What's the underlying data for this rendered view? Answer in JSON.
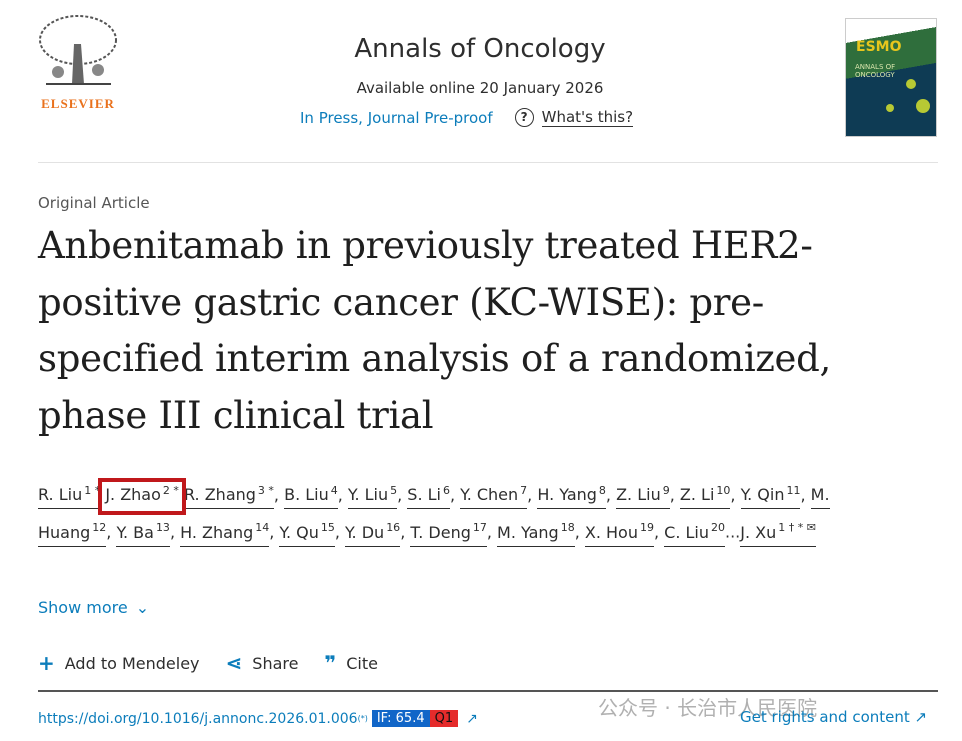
{
  "header": {
    "publisher": "ELSEVIER",
    "journal": "Annals of Oncology",
    "available": "Available online 20 January 2026",
    "status_link": "In Press, Journal Pre-proof",
    "help_link": "What's this?",
    "cover_brand": "ESMO",
    "cover_title": "ANNALS OF ONCOLOGY"
  },
  "article": {
    "type": "Original Article",
    "title": "Anbenitamab in previously treated HER2-positive gastric cancer (KC-WISE): pre-specified interim analysis of a randomized, phase III clinical trial"
  },
  "authors": [
    {
      "name": "R. Liu",
      "sup": "1 *",
      "sep": " "
    },
    {
      "name": "J. Zhao",
      "sup": "2 *",
      "sep": " "
    },
    {
      "name": "R. Zhang",
      "sup": "3 *",
      "sep": ", "
    },
    {
      "name": "B. Liu",
      "sup": "4",
      "sep": ", "
    },
    {
      "name": "Y. Liu",
      "sup": "5",
      "sep": ", "
    },
    {
      "name": "S. Li",
      "sup": "6",
      "sep": ", "
    },
    {
      "name": "Y. Chen",
      "sup": "7",
      "sep": ", "
    },
    {
      "name": "H. Yang",
      "sup": "8",
      "sep": ", "
    },
    {
      "name": "Z. Liu",
      "sup": "9",
      "sep": ", "
    },
    {
      "name": "Z. Li",
      "sup": "10",
      "sep": ", "
    },
    {
      "name": "Y. Qin",
      "sup": "11",
      "sep": ", "
    },
    {
      "name": "M. Huang",
      "sup": "12",
      "sep": ", "
    },
    {
      "name": "Y. Ba",
      "sup": "13",
      "sep": ", "
    },
    {
      "name": "H. Zhang",
      "sup": "14",
      "sep": ", "
    },
    {
      "name": "Y. Qu",
      "sup": "15",
      "sep": ", "
    },
    {
      "name": "Y. Du",
      "sup": "16",
      "sep": ", "
    },
    {
      "name": "T. Deng",
      "sup": "17",
      "sep": ", "
    },
    {
      "name": "M. Yang",
      "sup": "18",
      "sep": ", "
    },
    {
      "name": "X. Hou",
      "sup": "19",
      "sep": ", "
    },
    {
      "name": "C. Liu",
      "sup": "20",
      "sep": "..."
    },
    {
      "name": "J. Xu",
      "sup": "1 † * ✉",
      "sep": ""
    }
  ],
  "highlight_color": "#c0181b",
  "show_more": "Show more",
  "actions": {
    "mendeley": "Add to Mendeley",
    "share": "Share",
    "cite": "Cite"
  },
  "footer": {
    "doi": "https://doi.org/10.1016/j.annonc.2026.01.006",
    "doi_mark": "(*)",
    "impact_factor": "IF: 65.4",
    "quartile": "Q1",
    "rights": "Get rights and content ↗",
    "watermark": "公众号 · 长治市人民医院"
  }
}
